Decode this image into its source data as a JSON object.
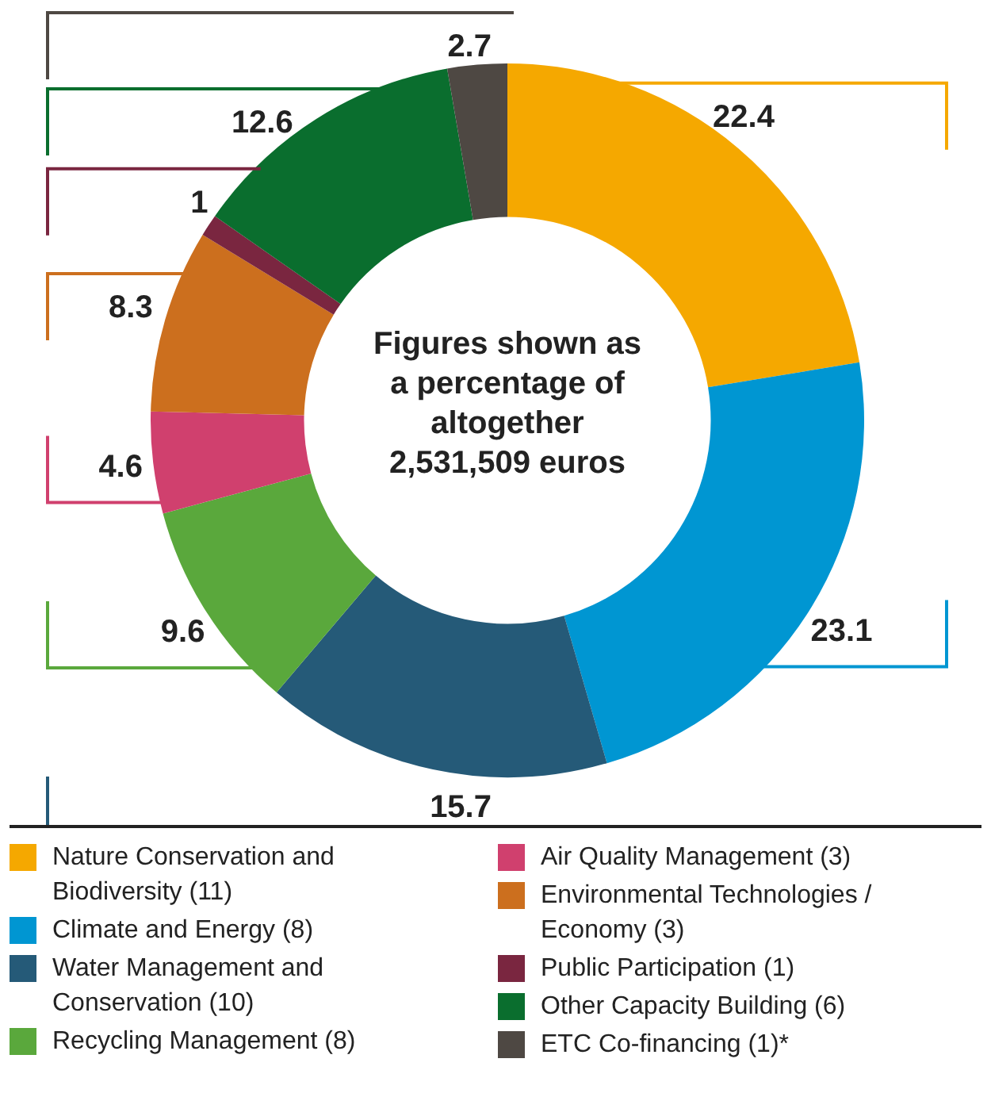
{
  "chart_data": {
    "type": "donut",
    "categories": [
      "Nature Conservation and Biodiversity (11)",
      "Climate and Energy (8)",
      "Water Management and Conservation (10)",
      "Recycling Management (8)",
      "Air Quality Management (3)",
      "Environmental Technologies / Economy (3)",
      "Public Participation (1)",
      "Other Capacity Building (6)",
      "ETC Co-financing (1)*"
    ],
    "values": [
      22.4,
      23.1,
      15.7,
      9.6,
      4.6,
      8.3,
      1,
      12.6,
      2.7
    ],
    "colors": [
      "#f5a800",
      "#0096d2",
      "#255a78",
      "#5aa83c",
      "#d0406e",
      "#cc6f1e",
      "#7a2640",
      "#0a6e2e",
      "#4e4843"
    ],
    "data_labels": true,
    "legend": "bottom",
    "annotations": [
      "Figures shown as a percentage of altogether 2,531,509 euros"
    ]
  }
}
